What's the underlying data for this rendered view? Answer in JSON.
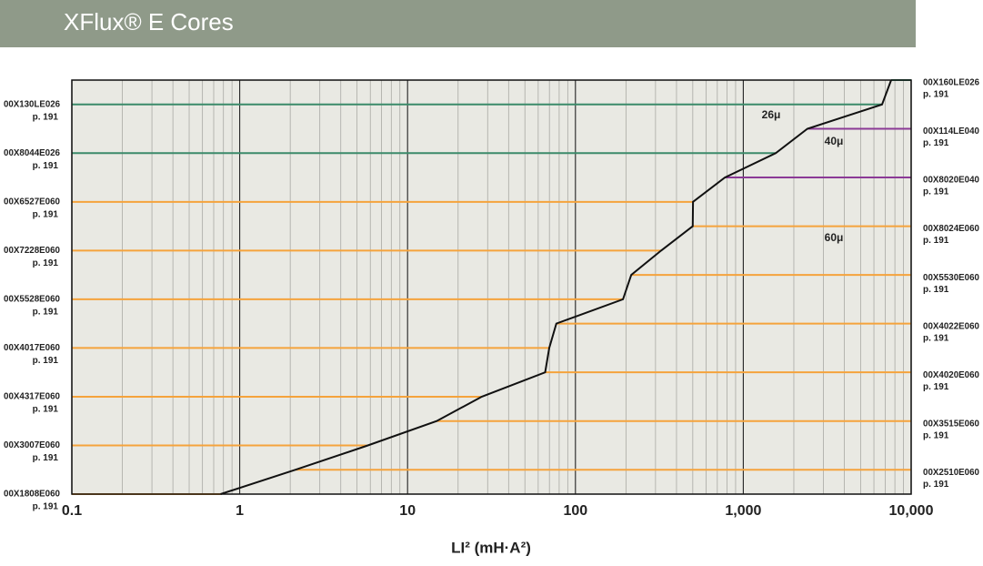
{
  "chart_data": {
    "type": "selector",
    "title": "XFlux® E Cores",
    "xlabel": "LI² (mH·A²)",
    "log_x": true,
    "xlim": [
      0.1,
      10000
    ],
    "xticks": [
      0.1,
      1,
      10,
      100,
      {
        "value": 1000,
        "label": "1,000"
      },
      {
        "value": 10000,
        "label": "10,000"
      }
    ],
    "grid": true,
    "curve_color": "#111111",
    "cores": [
      {
        "name": "00X1808E060",
        "page": "p. 191",
        "side": "left",
        "color": "#f5a33c",
        "x": 0.77
      },
      {
        "name": "00X2510E060",
        "page": "p. 191",
        "side": "right",
        "color": "#f5a33c",
        "x": 2.15
      },
      {
        "name": "00X3007E060",
        "page": "p. 191",
        "side": "left",
        "color": "#f5a33c",
        "x": 5.8
      },
      {
        "name": "00X3515E060",
        "page": "p. 191",
        "side": "right",
        "color": "#f5a33c",
        "x": 14.9
      },
      {
        "name": "00X4317E060",
        "page": "p. 191",
        "side": "left",
        "color": "#f5a33c",
        "x": 27.7
      },
      {
        "name": "00X4020E060",
        "page": "p. 191",
        "side": "right",
        "color": "#f5a33c",
        "x": 66
      },
      {
        "name": "00X4017E060",
        "page": "p. 191",
        "side": "left",
        "color": "#f5a33c",
        "x": 69.8
      },
      {
        "name": "00X4022E060",
        "page": "p. 191",
        "side": "right",
        "color": "#f5a33c",
        "x": 77
      },
      {
        "name": "00X5528E060",
        "page": "p. 191",
        "side": "left",
        "color": "#f5a33c",
        "x": 192
      },
      {
        "name": "00X5530E060",
        "page": "p. 191",
        "side": "right",
        "color": "#f5a33c",
        "x": 215
      },
      {
        "name": "00X7228E060",
        "page": "p. 191",
        "side": "left",
        "color": "#f5a33c",
        "x": 324
      },
      {
        "name": "00X8024E060",
        "page": "p. 191",
        "side": "right",
        "color": "#f5a33c",
        "x": 500
      },
      {
        "name": "00X6527E060",
        "page": "p. 191",
        "side": "left",
        "color": "#f5a33c",
        "x": 502
      },
      {
        "name": "00X8020E040",
        "page": "p. 191",
        "side": "right",
        "color": "#8b3a96",
        "x": 776
      },
      {
        "name": "00X8044E026",
        "page": "p. 191",
        "side": "left",
        "color": "#3b8a6a",
        "x": 1560
      },
      {
        "name": "00X114LE040",
        "page": "p. 191",
        "side": "right",
        "color": "#8b3a96",
        "x": 2410
      },
      {
        "name": "00X130LE026",
        "page": "p. 191",
        "side": "left",
        "color": "#3b8a6a",
        "x": 6710
      },
      {
        "name": "00X160LE026",
        "page": "p. 191",
        "side": "right",
        "color": "#3b8a6a",
        "x": 7600
      }
    ],
    "annotations": [
      "26μ",
      "40μ",
      "60μ"
    ]
  }
}
